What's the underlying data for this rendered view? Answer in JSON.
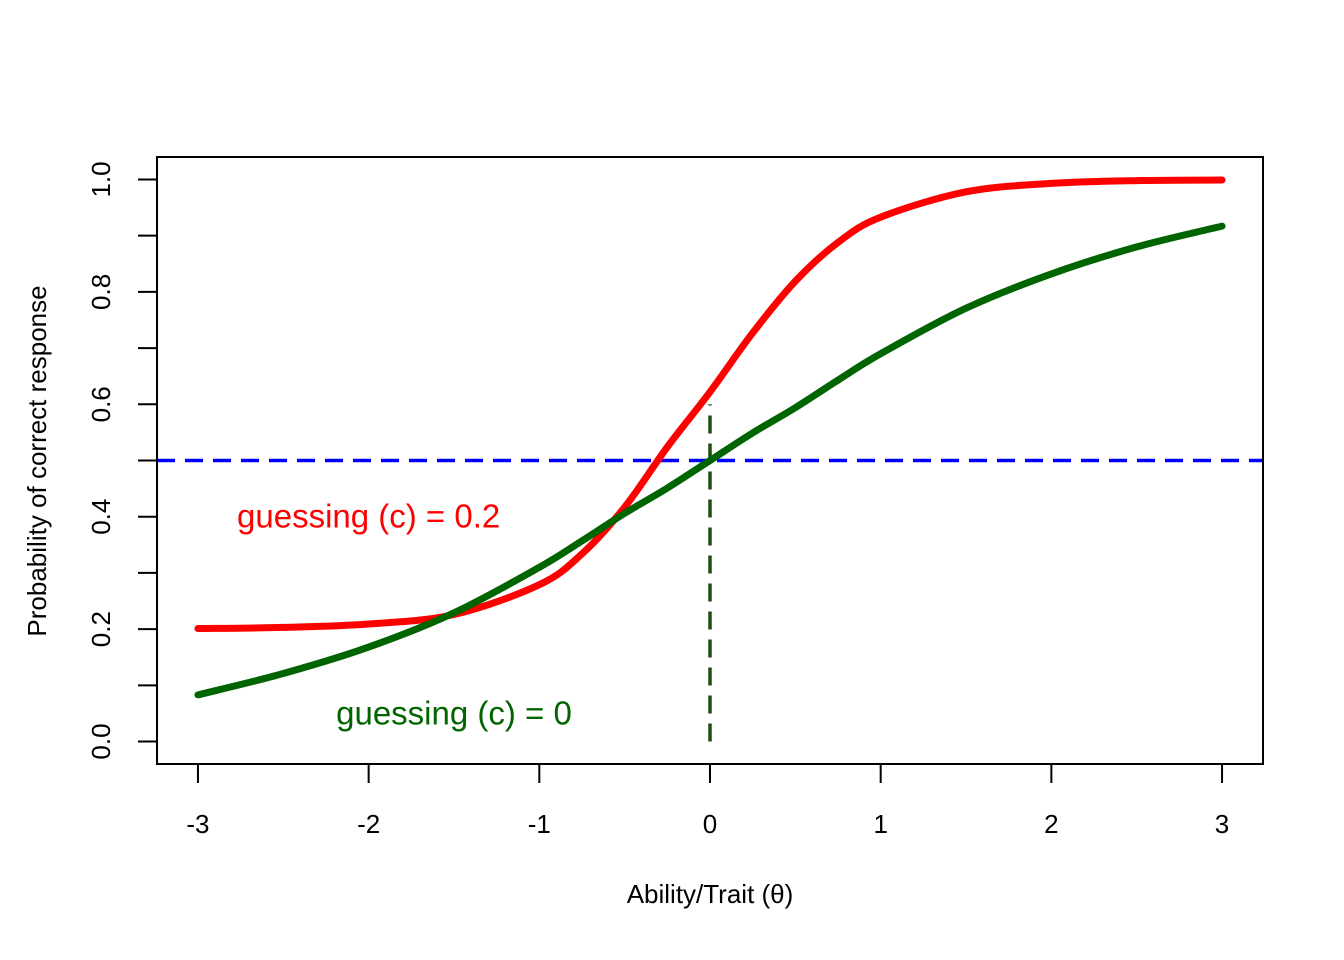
{
  "chart_data": {
    "type": "line",
    "title": "",
    "xlabel": "Ability/Trait (θ)",
    "ylabel": "Probability of correct response",
    "xlim": [
      -3.24,
      3.24
    ],
    "ylim": [
      -0.04,
      1.04
    ],
    "xticks": [
      -3,
      -2,
      -1,
      0,
      1,
      2,
      3
    ],
    "xtick_labels": [
      "-3",
      "-2",
      "-1",
      "0",
      "1",
      "2",
      "3"
    ],
    "yticks": [
      0.0,
      0.1,
      0.2,
      0.3,
      0.4,
      0.5,
      0.6,
      0.7,
      0.8,
      0.9,
      1.0
    ],
    "ytick_labels": [
      "0.0",
      "",
      "0.2",
      "",
      "0.4",
      "",
      "0.6",
      "",
      "0.8",
      "",
      "1.0"
    ],
    "grid": false,
    "x": [
      -3.0,
      -2.5,
      -2.0,
      -1.5,
      -1.0,
      -0.75,
      -0.5,
      -0.25,
      0.0,
      0.25,
      0.5,
      0.75,
      1.0,
      1.5,
      2.0,
      2.5,
      3.0
    ],
    "series": [
      {
        "label": "guessing (c) = 0.2",
        "color": "#ff0000",
        "values": [
          0.201,
          0.203,
          0.209,
          0.226,
          0.279,
          0.334,
          0.417,
          0.524,
          0.622,
          0.727,
          0.819,
          0.888,
          0.933,
          0.978,
          0.993,
          0.998,
          0.999
        ]
      },
      {
        "label": "guessing (c) = 0",
        "color": "#006400",
        "values": [
          0.083,
          0.121,
          0.168,
          0.229,
          0.31,
          0.357,
          0.406,
          0.451,
          0.5,
          0.549,
          0.594,
          0.643,
          0.69,
          0.771,
          0.832,
          0.88,
          0.917
        ]
      }
    ],
    "reference_lines": [
      {
        "orientation": "horizontal",
        "y": 0.5,
        "color": "#0000ff",
        "style": "dashed"
      },
      {
        "orientation": "vertical",
        "x": 0,
        "y_from": 0,
        "y_to": 0.6,
        "color": "#1f4d0f",
        "style": "dashed"
      }
    ],
    "annotations": [
      {
        "text": "guessing (c) = 0.2",
        "x": -2.0,
        "y": 0.4,
        "color": "#ff0000"
      },
      {
        "text": "guessing (c) = 0",
        "x": -1.5,
        "y": 0.05,
        "color": "#006400"
      }
    ]
  }
}
